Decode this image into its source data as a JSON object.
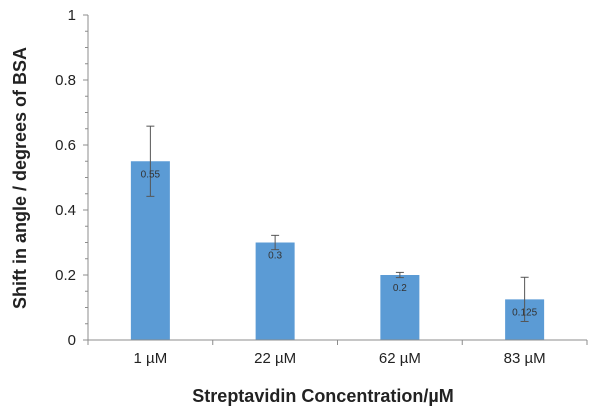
{
  "chart_data": {
    "type": "bar",
    "title": "",
    "xlabel": "Streptavidin Concentration/µM",
    "ylabel": "Shift in angle / degrees of BSA",
    "categories": [
      "1 µM",
      "22 µM",
      "62 µM",
      "83 µM"
    ],
    "values": [
      0.55,
      0.3,
      0.2,
      0.125
    ],
    "data_labels": [
      "0.55",
      "0.3",
      "0.2",
      "0.125"
    ],
    "error_bars": [
      0.108,
      0.022,
      0.008,
      0.068
    ],
    "ylim": [
      0,
      1
    ],
    "yticks": [
      0,
      0.2,
      0.4,
      0.6,
      0.8,
      1
    ],
    "ytick_labels": [
      "0",
      "0.2",
      "0.4",
      "0.6",
      "0.8",
      "1"
    ],
    "grid": false,
    "legend": "none",
    "colors": {
      "bar": "#5b9bd5",
      "error_bar": "#555555",
      "axis": "#8c8c8c"
    }
  }
}
